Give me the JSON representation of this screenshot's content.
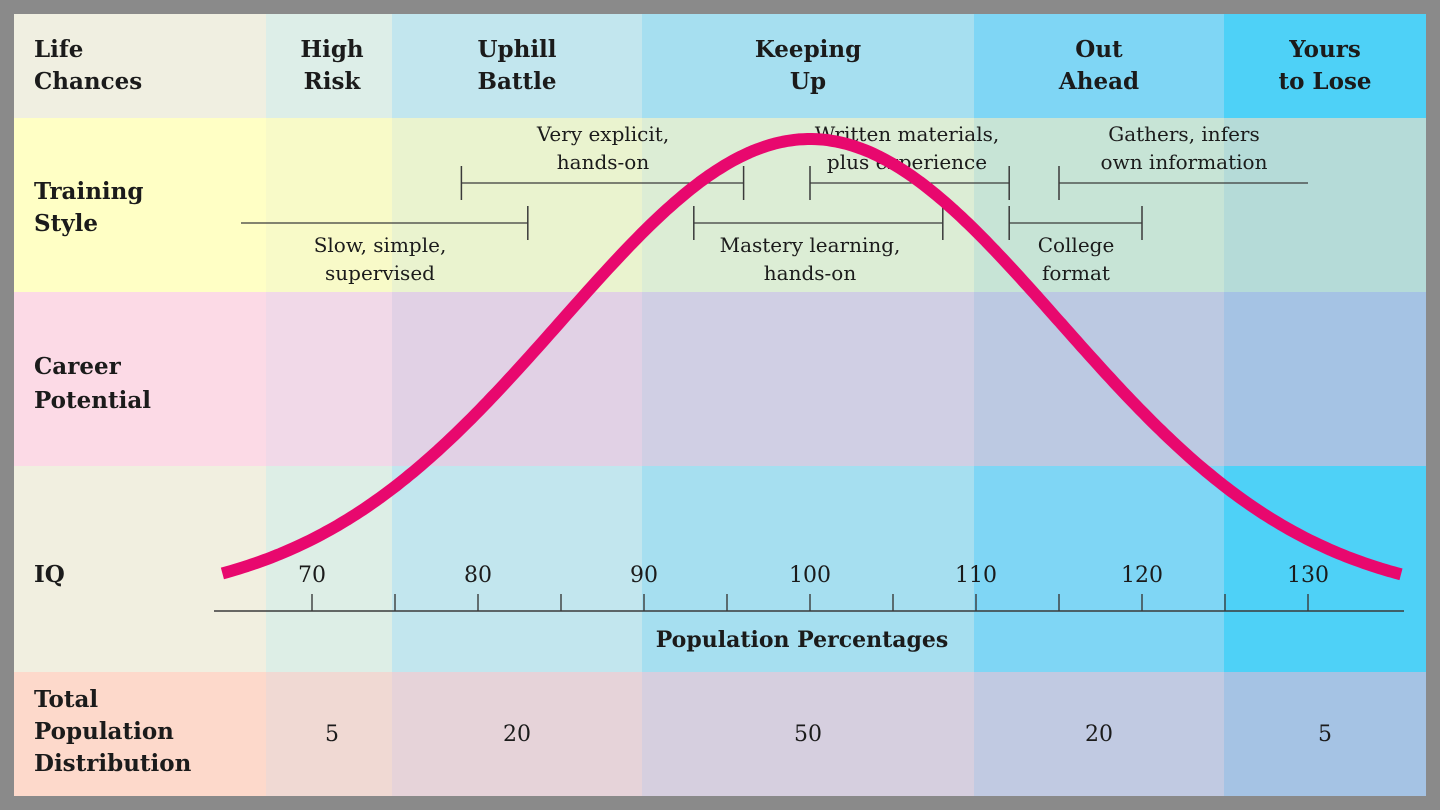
{
  "header": {
    "row_label": [
      "Life",
      "Chances"
    ],
    "columns": [
      {
        "line1": "High",
        "line2": "Risk"
      },
      {
        "line1": "Uphill",
        "line2": "Battle"
      },
      {
        "line1": "Keeping",
        "line2": "Up"
      },
      {
        "line1": "Out",
        "line2": "Ahead"
      },
      {
        "line1": "Yours",
        "line2": "to Lose"
      }
    ]
  },
  "training": {
    "row_label": [
      "Training",
      "Style"
    ],
    "styles": [
      {
        "line1": "Slow, simple,",
        "line2": "supervised"
      },
      {
        "line1": "Very explicit,",
        "line2": "hands-on"
      },
      {
        "line1": "Mastery learning,",
        "line2": "hands-on"
      },
      {
        "line1": "Written materials,",
        "line2": "plus experience"
      },
      {
        "line1": "College",
        "line2": "format"
      },
      {
        "line1": "Gathers, infers",
        "line2": "own information"
      }
    ]
  },
  "career": {
    "row_label": [
      "Career",
      "Potential"
    ]
  },
  "iq": {
    "row_label": "IQ",
    "tick_labels": [
      "70",
      "80",
      "90",
      "100",
      "110",
      "120",
      "130"
    ],
    "axis_title": "Population Percentages"
  },
  "distribution": {
    "row_label": [
      "Total",
      "Population",
      "Distribution"
    ],
    "values": [
      "5",
      "20",
      "50",
      "20",
      "5"
    ]
  },
  "chart_data": {
    "type": "line",
    "description_curve": "normal distribution",
    "x_axis": {
      "label": "IQ",
      "ticks": [
        70,
        80,
        90,
        100,
        110,
        120,
        130
      ],
      "range": [
        64,
        136
      ]
    },
    "curve": {
      "mean": 100,
      "sd": 15,
      "color": "#e8086e"
    },
    "bands": [
      {
        "name": "High Risk",
        "iq_range": [
          null,
          75
        ],
        "percent": 5
      },
      {
        "name": "Uphill Battle",
        "iq_range": [
          75,
          90
        ],
        "percent": 20
      },
      {
        "name": "Keeping Up",
        "iq_range": [
          90,
          110
        ],
        "percent": 50
      },
      {
        "name": "Out Ahead",
        "iq_range": [
          110,
          125
        ],
        "percent": 20
      },
      {
        "name": "Yours to Lose",
        "iq_range": [
          125,
          null
        ],
        "percent": 5
      }
    ],
    "training_ranges": [
      {
        "name": "Slow, simple, supervised",
        "iq_range": [
          null,
          83
        ]
      },
      {
        "name": "Very explicit, hands-on",
        "iq_range": [
          79,
          96
        ]
      },
      {
        "name": "Mastery learning, hands-on",
        "iq_range": [
          93,
          108
        ]
      },
      {
        "name": "Written materials, plus experience",
        "iq_range": [
          100,
          112
        ]
      },
      {
        "name": "College format",
        "iq_range": [
          112,
          120
        ]
      },
      {
        "name": "Gathers, infers own information",
        "iq_range": [
          115,
          null
        ]
      }
    ]
  },
  "colors": {
    "curve": "#e8086e",
    "header_row": [
      "#f0efe1",
      "#ddeee8",
      "#c2e6ee",
      "#a6dff0",
      "#7fd6f5",
      "#4ed1f7"
    ],
    "training_row": [
      "#ffffc5",
      "#f8fac8",
      "#eaf3cf",
      "#dcedd5",
      "#c7e4d6",
      "#b5dbd8"
    ],
    "career_row": [
      "#fcdae6",
      "#f1d9e8",
      "#e1d1e5",
      "#d0cfe4",
      "#bcc9e2",
      "#a5c3e4"
    ],
    "iq_row": [
      "#f1efe0",
      "#ddeee6",
      "#c2e6ee",
      "#a6dff0",
      "#7fd6f5",
      "#4ed1f7"
    ],
    "distribution_row": [
      "#fdd9cb",
      "#f0d9d3",
      "#e6d3d9",
      "#d6cfdf",
      "#c1cae2",
      "#a5c3e4"
    ]
  }
}
